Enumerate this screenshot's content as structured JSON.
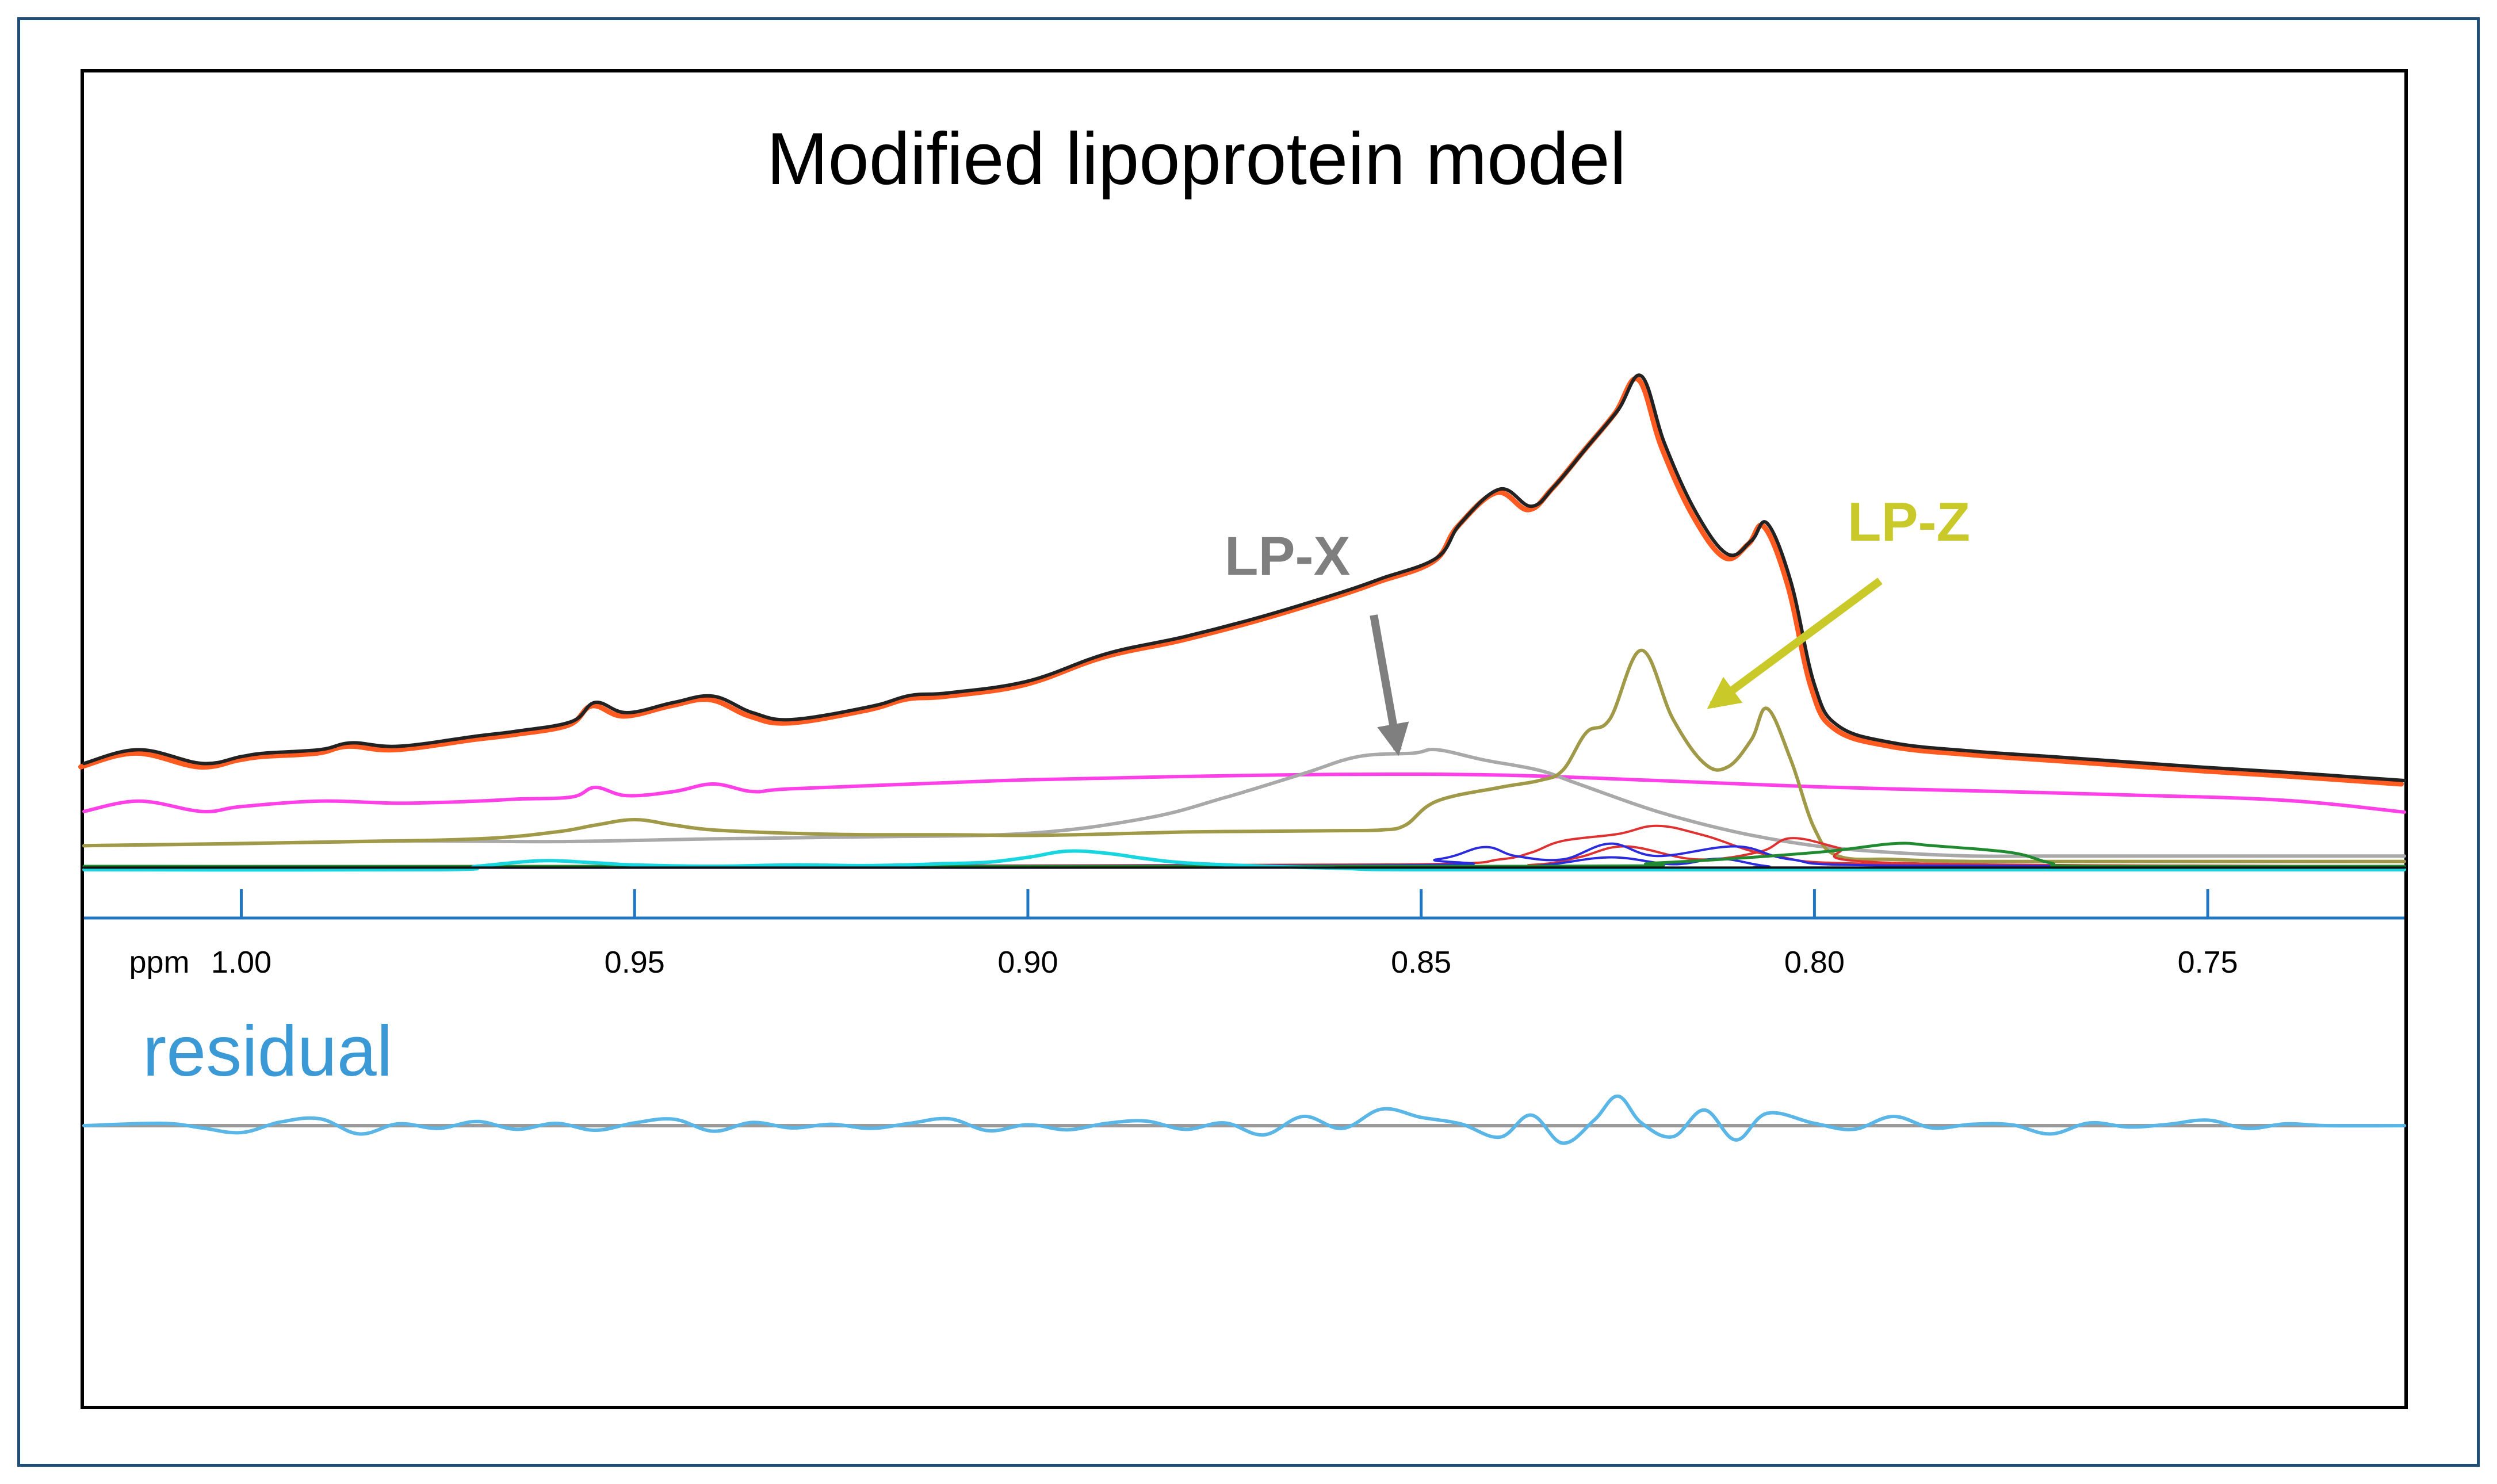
{
  "chart_data": {
    "type": "line",
    "title": "Modified lipoprotein model",
    "xlabel": "ppm",
    "x_reversed": true,
    "xlim": [
      1.02,
      0.725
    ],
    "ylim": [
      0,
      100
    ],
    "residual_ylim": [
      -15,
      15
    ],
    "grid": false,
    "x_ticks": [
      1.0,
      0.95,
      0.9,
      0.85,
      0.8,
      0.75
    ],
    "x_tick_labels": [
      "1.00",
      "0.95",
      "0.90",
      "0.85",
      "0.80",
      "0.75"
    ],
    "colors": {
      "axis": "#1f77c4",
      "frame_outer": "#1f4e79",
      "lpx_text": "#7f7f7f",
      "lpz_text": "#c9c92a",
      "residual_text": "#3b9ad6"
    },
    "annotations": [
      {
        "name": "lp-x",
        "text": "LP-X",
        "x": 0.867,
        "y": 43,
        "arrow_to": [
          0.853,
          17.5
        ],
        "color": "#7f7f7f"
      },
      {
        "name": "lp-z",
        "text": "LP-Z",
        "x": 0.788,
        "y": 48,
        "arrow_to": [
          0.813,
          24
        ],
        "color": "#c9c92a"
      }
    ],
    "residual_label": "residual",
    "series": [
      {
        "name": "experimental",
        "color": "#ff5a1f",
        "width": 9,
        "dx": 0.0004,
        "dy": -0.5,
        "area": "main",
        "x": [
          1.02,
          1.013,
          1.005,
          1.0,
          0.997,
          0.99,
          0.986,
          0.98,
          0.97,
          0.965,
          0.958,
          0.955,
          0.951,
          0.945,
          0.94,
          0.935,
          0.93,
          0.92,
          0.915,
          0.91,
          0.9,
          0.89,
          0.88,
          0.87,
          0.86,
          0.855,
          0.848,
          0.845,
          0.84,
          0.836,
          0.833,
          0.829,
          0.825,
          0.822,
          0.819,
          0.815,
          0.811,
          0.808,
          0.806,
          0.803,
          0.8,
          0.797,
          0.79,
          0.78,
          0.77,
          0.76,
          0.75,
          0.74,
          0.725
        ],
        "y": [
          15.5,
          17.5,
          15.5,
          16.5,
          17,
          17.5,
          18.5,
          18,
          19.5,
          20.2,
          21.6,
          24.4,
          22.9,
          24.4,
          25.3,
          22.9,
          21.9,
          23.8,
          25.4,
          25.8,
          27.5,
          31.5,
          34,
          37,
          40.5,
          42.5,
          45.5,
          50.5,
          55.5,
          53,
          56,
          61.5,
          67,
          72,
          62,
          52,
          46,
          48,
          50.5,
          42,
          27,
          21,
          18.5,
          17.3,
          16.5,
          15.7,
          14.9,
          14.2,
          13
        ]
      },
      {
        "name": "fit",
        "color": "#222222",
        "width": 6,
        "dx": 0,
        "dy": 0,
        "area": "main",
        "x": [
          1.02,
          1.013,
          1.005,
          1.0,
          0.997,
          0.99,
          0.986,
          0.98,
          0.97,
          0.965,
          0.958,
          0.955,
          0.951,
          0.945,
          0.94,
          0.935,
          0.93,
          0.92,
          0.915,
          0.91,
          0.9,
          0.89,
          0.88,
          0.87,
          0.86,
          0.855,
          0.848,
          0.845,
          0.84,
          0.836,
          0.833,
          0.829,
          0.825,
          0.822,
          0.819,
          0.815,
          0.811,
          0.808,
          0.806,
          0.803,
          0.8,
          0.797,
          0.79,
          0.78,
          0.77,
          0.76,
          0.75,
          0.74,
          0.725
        ],
        "y": [
          15.5,
          17.5,
          15.5,
          16.5,
          17,
          17.5,
          18.5,
          18,
          19.5,
          20.2,
          21.6,
          24.4,
          22.9,
          24.4,
          25.3,
          22.9,
          21.9,
          23.8,
          25.4,
          25.8,
          27.5,
          31.5,
          34,
          37,
          40.5,
          42.5,
          45.5,
          50.5,
          55.5,
          53,
          56,
          61.5,
          67,
          72,
          62,
          52,
          46,
          48,
          50.5,
          42,
          27,
          21,
          18.5,
          17.3,
          16.5,
          15.7,
          14.9,
          14.2,
          13
        ]
      },
      {
        "name": "magenta-component",
        "color": "#ff3fe8",
        "width": 6,
        "dx": 0,
        "dy": 0,
        "area": "main",
        "x": [
          1.02,
          1.013,
          1.005,
          1.0,
          0.99,
          0.98,
          0.97,
          0.965,
          0.958,
          0.955,
          0.951,
          0.945,
          0.94,
          0.935,
          0.93,
          0.91,
          0.9,
          0.88,
          0.86,
          0.84,
          0.82,
          0.8,
          0.78,
          0.76,
          0.74,
          0.725
        ],
        "y": [
          8.5,
          10,
          8.5,
          9.2,
          10,
          9.7,
          10,
          10.3,
          10.6,
          12,
          10.8,
          11.4,
          12.5,
          11.4,
          11.8,
          12.7,
          13.1,
          13.6,
          13.9,
          13.8,
          13,
          12.1,
          11.5,
          10.9,
          10.1,
          8.4
        ]
      },
      {
        "name": "lp-x-component",
        "color": "#a9a9a9",
        "width": 6,
        "dx": 0,
        "dy": 0,
        "area": "main",
        "x": [
          1.02,
          1.0,
          0.98,
          0.96,
          0.94,
          0.92,
          0.9,
          0.885,
          0.875,
          0.865,
          0.858,
          0.851,
          0.848,
          0.842,
          0.835,
          0.83,
          0.82,
          0.81,
          0.8,
          0.79,
          0.78,
          0.77,
          0.75,
          0.725
        ],
        "y": [
          3.5,
          3.8,
          4.2,
          4.1,
          4.5,
          4.8,
          5.3,
          7.5,
          10.5,
          14,
          16.5,
          17,
          17.5,
          16,
          14.5,
          12.5,
          8.5,
          5.5,
          3.5,
          2.5,
          2,
          2,
          2,
          2
        ]
      },
      {
        "name": "lp-z-component",
        "color": "#a09a48",
        "width": 6,
        "dx": 0,
        "dy": 0,
        "area": "main",
        "x": [
          1.02,
          0.99,
          0.97,
          0.96,
          0.955,
          0.95,
          0.945,
          0.94,
          0.93,
          0.92,
          0.91,
          0.9,
          0.89,
          0.88,
          0.87,
          0.86,
          0.855,
          0.852,
          0.848,
          0.84,
          0.835,
          0.832,
          0.829,
          0.826,
          0.822,
          0.818,
          0.814,
          0.811,
          0.808,
          0.806,
          0.803,
          0.8,
          0.797,
          0.79,
          0.78,
          0.76,
          0.74,
          0.725
        ],
        "y": [
          3.5,
          4,
          4.5,
          5.5,
          6.5,
          7.3,
          6.5,
          5.8,
          5.3,
          5.1,
          5.1,
          5.0,
          5.2,
          5.5,
          5.6,
          5.7,
          5.8,
          6.5,
          10,
          12,
          13,
          14.5,
          20,
          22,
          32,
          22,
          15.5,
          15,
          19,
          23.5,
          16,
          6,
          2,
          1.5,
          1.2,
          1.2,
          1.2,
          1.2
        ]
      },
      {
        "name": "red-component-1",
        "color": "#e03030",
        "width": 4,
        "dx": 0,
        "dy": 0,
        "area": "main",
        "x": [
          1.02,
          0.9,
          0.85,
          0.84,
          0.836,
          0.832,
          0.825,
          0.82,
          0.814,
          0.805,
          0.79,
          0.725
        ],
        "y": [
          0.5,
          0.6,
          0.8,
          1.5,
          2.5,
          4.2,
          5.2,
          6.4,
          5,
          2,
          0.8,
          0.5
        ]
      },
      {
        "name": "red-component-2",
        "color": "#e03030",
        "width": 4,
        "dx": 0,
        "dy": 0,
        "area": "main",
        "x": [
          1.02,
          0.85,
          0.836,
          0.83,
          0.824,
          0.815,
          0.807,
          0.803,
          0.797,
          0.79,
          0.725
        ],
        "y": [
          0.5,
          0.5,
          0.7,
          1.8,
          3.4,
          1.5,
          2.6,
          4.6,
          3.2,
          1,
          0.5
        ]
      },
      {
        "name": "blue-component-1",
        "color": "#2a2ae0",
        "width": 4,
        "dx": 0,
        "dy": 0,
        "area": "main",
        "x": [
          1.02,
          0.86,
          0.848,
          0.842,
          0.838,
          0.832,
          0.826,
          0.82,
          0.81,
          0.803,
          0.79,
          0.725
        ],
        "y": [
          0.5,
          0.6,
          1.5,
          3.3,
          2,
          1.5,
          3.8,
          2,
          3.4,
          1.5,
          0.6,
          0.5
        ]
      },
      {
        "name": "blue-component-2",
        "color": "#2a2ae0",
        "width": 4,
        "dx": 0,
        "dy": 0,
        "area": "main",
        "x": [
          1.02,
          0.845,
          0.835,
          0.826,
          0.818,
          0.812,
          0.806,
          0.8,
          0.725
        ],
        "y": [
          0.3,
          0.3,
          0.6,
          1.8,
          0.8,
          1.6,
          0.5,
          0.3,
          0.3
        ]
      },
      {
        "name": "green-component",
        "color": "#1f8a2f",
        "width": 5,
        "dx": 0,
        "dy": 0,
        "area": "main",
        "x": [
          1.02,
          0.84,
          0.82,
          0.8,
          0.79,
          0.785,
          0.775,
          0.77,
          0.765,
          0.725
        ],
        "y": [
          0.5,
          0.5,
          1,
          2.5,
          3.8,
          3.5,
          2.5,
          1,
          0.5,
          0.5
        ]
      },
      {
        "name": "cyan-component",
        "color": "#18d6e0",
        "width": 6,
        "dx": 0,
        "dy": 0,
        "area": "main",
        "x": [
          1.02,
          0.975,
          0.97,
          0.962,
          0.955,
          0.95,
          0.94,
          0.93,
          0.92,
          0.91,
          0.905,
          0.9,
          0.895,
          0.89,
          0.885,
          0.88,
          0.87,
          0.86,
          0.85,
          0.8,
          0.725
        ],
        "y": [
          0,
          0,
          0.5,
          1.3,
          1,
          0.7,
          0.5,
          0.7,
          0.6,
          0.9,
          1.1,
          1.8,
          2.7,
          2.4,
          1.6,
          1,
          0.5,
          0.2,
          0,
          0,
          0
        ]
      },
      {
        "name": "baseline",
        "color": "#111111",
        "width": 4,
        "dx": 0,
        "dy": 0,
        "area": "main",
        "x": [
          1.02,
          0.725
        ],
        "y": [
          0.3,
          0.3
        ]
      },
      {
        "name": "residual-zero",
        "color": "#9a9a9a",
        "width": 6,
        "dx": 0,
        "dy": 0,
        "area": "residual",
        "x": [
          1.02,
          0.725
        ],
        "y": [
          0,
          0
        ]
      },
      {
        "name": "residual",
        "color": "#5ab6e6",
        "width": 6,
        "dx": 0,
        "dy": 0,
        "area": "residual",
        "x": [
          1.02,
          1.01,
          1.005,
          1.0,
          0.995,
          0.99,
          0.985,
          0.98,
          0.975,
          0.97,
          0.965,
          0.96,
          0.955,
          0.95,
          0.945,
          0.94,
          0.935,
          0.93,
          0.925,
          0.92,
          0.915,
          0.91,
          0.905,
          0.9,
          0.895,
          0.89,
          0.885,
          0.88,
          0.875,
          0.87,
          0.865,
          0.86,
          0.855,
          0.85,
          0.845,
          0.84,
          0.836,
          0.832,
          0.828,
          0.825,
          0.822,
          0.818,
          0.814,
          0.81,
          0.806,
          0.8,
          0.795,
          0.79,
          0.785,
          0.78,
          0.775,
          0.77,
          0.765,
          0.76,
          0.755,
          0.75,
          0.745,
          0.74,
          0.735,
          0.725
        ],
        "y": [
          0,
          0.5,
          -0.5,
          -1.5,
          0.8,
          1.5,
          -1.8,
          0.4,
          -0.6,
          0.9,
          -0.8,
          0.5,
          -1,
          0.6,
          1.4,
          -1.2,
          0.7,
          -0.5,
          0.3,
          -0.6,
          0.5,
          1.5,
          -1.1,
          0.2,
          -0.9,
          0.5,
          1,
          -0.8,
          0.6,
          -2,
          2,
          -0.6,
          3.6,
          1.8,
          0.4,
          -2.5,
          2.3,
          -3.8,
          1.2,
          6.4,
          0.6,
          -2.4,
          3.4,
          -3.1,
          2.7,
          0.5,
          -0.8,
          2,
          -0.5,
          0.3,
          0.2,
          -1.8,
          0.6,
          -0.3,
          0.3,
          1.2,
          -0.6,
          0.4,
          0,
          0
        ]
      }
    ]
  }
}
